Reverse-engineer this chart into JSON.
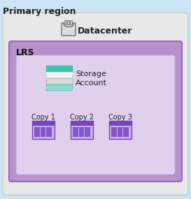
{
  "title": "Primary region",
  "title_fontsize": 9,
  "title_fontweight": "bold",
  "bg_color": "#cce5f5",
  "datacenter_box_color": "#e8e8e8",
  "datacenter_box_edge": "#cccccc",
  "lrs_box_color_top": "#c8a0dc",
  "lrs_box_color": "#b890cc",
  "lrs_box_edge": "#9966bb",
  "inner_box_color": "#e0d0ee",
  "inner_box_edge": "#c0a8dc",
  "datacenter_label": "Datacenter",
  "datacenter_label_fontsize": 9,
  "lrs_label": "LRS",
  "lrs_label_fontsize": 9,
  "storage_label": "Storage\nAccount",
  "storage_label_fontsize": 8,
  "copy_labels": [
    "Copy 1",
    "Copy 2",
    "Copy 3"
  ],
  "copy_label_fontsize": 7,
  "copy_icon_purple_dark": "#7744bb",
  "copy_icon_purple_mid": "#8855cc",
  "copy_icon_purple_light": "#c8b0e8",
  "copy_icon_stripe": "#e0d0f8",
  "storage_teal1": "#3dc8b0",
  "storage_teal2": "#55d4bc",
  "storage_white": "#f4f4f4",
  "storage_gray": "#d8d8d8",
  "storage_light_teal": "#88ddd0"
}
